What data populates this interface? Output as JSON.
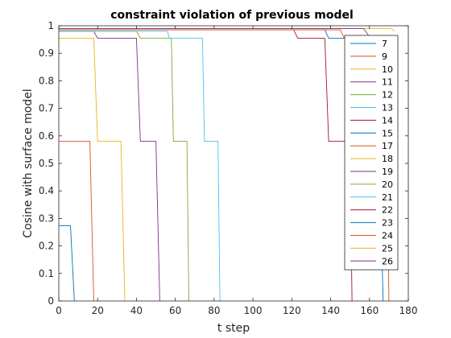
{
  "chart_data": {
    "type": "line",
    "title": "constraint violation of previous model",
    "xlabel": "t step",
    "ylabel": "Cosine with surface model",
    "xlim": [
      0,
      180
    ],
    "ylim": [
      0,
      1
    ],
    "xticks": [
      0,
      20,
      40,
      60,
      80,
      100,
      120,
      140,
      160,
      180
    ],
    "yticks": [
      0,
      0.1,
      0.2,
      0.3,
      0.4,
      0.5,
      0.6,
      0.7,
      0.8,
      0.9,
      1
    ],
    "grid": false,
    "legend_position": "top-right",
    "series": [
      {
        "name": "7",
        "color": "#0072BD",
        "points": [
          [
            0,
            0.273
          ],
          [
            6,
            0.273
          ],
          [
            8,
            0
          ]
        ]
      },
      {
        "name": "9",
        "color": "#D95319",
        "points": [
          [
            0,
            0.58
          ],
          [
            16,
            0.58
          ],
          [
            18,
            0
          ]
        ]
      },
      {
        "name": "10",
        "color": "#EDB120",
        "points": [
          [
            0,
            0.955
          ],
          [
            18,
            0.955
          ],
          [
            20,
            0.58
          ],
          [
            32,
            0.58
          ],
          [
            34,
            0
          ]
        ]
      },
      {
        "name": "11",
        "color": "#7E2F8E",
        "points": [
          [
            0,
            0.98
          ],
          [
            18,
            0.98
          ],
          [
            20,
            0.955
          ],
          [
            40,
            0.955
          ],
          [
            42,
            0.58
          ],
          [
            50,
            0.58
          ],
          [
            52,
            0
          ]
        ]
      },
      {
        "name": "12",
        "color": "#77AC30",
        "points": [
          [
            0,
            0.98
          ],
          [
            40,
            0.98
          ],
          [
            42,
            0.955
          ],
          [
            58,
            0.955
          ],
          [
            59,
            0.58
          ],
          [
            66,
            0.58
          ],
          [
            67,
            0
          ]
        ]
      },
      {
        "name": "13",
        "color": "#4DBEEE",
        "points": [
          [
            0,
            0.98
          ],
          [
            56,
            0.98
          ],
          [
            57,
            0.955
          ],
          [
            74,
            0.955
          ],
          [
            75,
            0.58
          ],
          [
            82,
            0.58
          ],
          [
            83,
            0
          ]
        ]
      },
      {
        "name": "14",
        "color": "#A2142F",
        "points": [
          [
            0,
            0.985
          ],
          [
            121,
            0.985
          ],
          [
            123,
            0.955
          ],
          [
            137,
            0.955
          ],
          [
            139,
            0.58
          ],
          [
            150,
            0.58
          ],
          [
            151,
            0
          ]
        ]
      },
      {
        "name": "15",
        "color": "#0072BD",
        "points": [
          [
            0,
            0.985
          ],
          [
            137,
            0.985
          ],
          [
            139,
            0.955
          ],
          [
            148,
            0.955
          ],
          [
            150,
            0.58
          ],
          [
            165,
            0.58
          ],
          [
            167,
            0
          ]
        ]
      },
      {
        "name": "17",
        "color": "#D95319",
        "points": [
          [
            0,
            0.985
          ],
          [
            145,
            0.985
          ],
          [
            147,
            0.955
          ],
          [
            158,
            0.955
          ],
          [
            160,
            0.58
          ],
          [
            169,
            0.58
          ],
          [
            170,
            0
          ]
        ]
      },
      {
        "name": "18",
        "color": "#EDB120",
        "points": [
          [
            0,
            0.99
          ],
          [
            171,
            0.99
          ],
          [
            173,
            0.98
          ]
        ]
      },
      {
        "name": "19",
        "color": "#7E2F8E",
        "points": [
          [
            0,
            0.99
          ],
          [
            157,
            0.99
          ],
          [
            160,
            0.96
          ],
          [
            162,
            0.96
          ]
        ]
      },
      {
        "name": "20",
        "color": "#77AC30",
        "points": [
          [
            0,
            0.99
          ],
          [
            150,
            0.99
          ]
        ]
      },
      {
        "name": "21",
        "color": "#4DBEEE",
        "points": [
          [
            0,
            0.99
          ],
          [
            150,
            0.99
          ]
        ]
      },
      {
        "name": "22",
        "color": "#A2142F",
        "points": [
          [
            0,
            0.99
          ],
          [
            150,
            0.99
          ]
        ]
      },
      {
        "name": "23",
        "color": "#0072BD",
        "points": [
          [
            0,
            0.99
          ],
          [
            150,
            0.99
          ]
        ]
      },
      {
        "name": "24",
        "color": "#D95319",
        "points": [
          [
            0,
            0.99
          ],
          [
            150,
            0.99
          ]
        ]
      },
      {
        "name": "25",
        "color": "#EDB120",
        "points": [
          [
            0,
            0.99
          ],
          [
            150,
            0.99
          ]
        ]
      },
      {
        "name": "26",
        "color": "#7E2F8E",
        "points": [
          [
            0,
            0.99
          ],
          [
            150,
            0.99
          ]
        ]
      }
    ]
  }
}
